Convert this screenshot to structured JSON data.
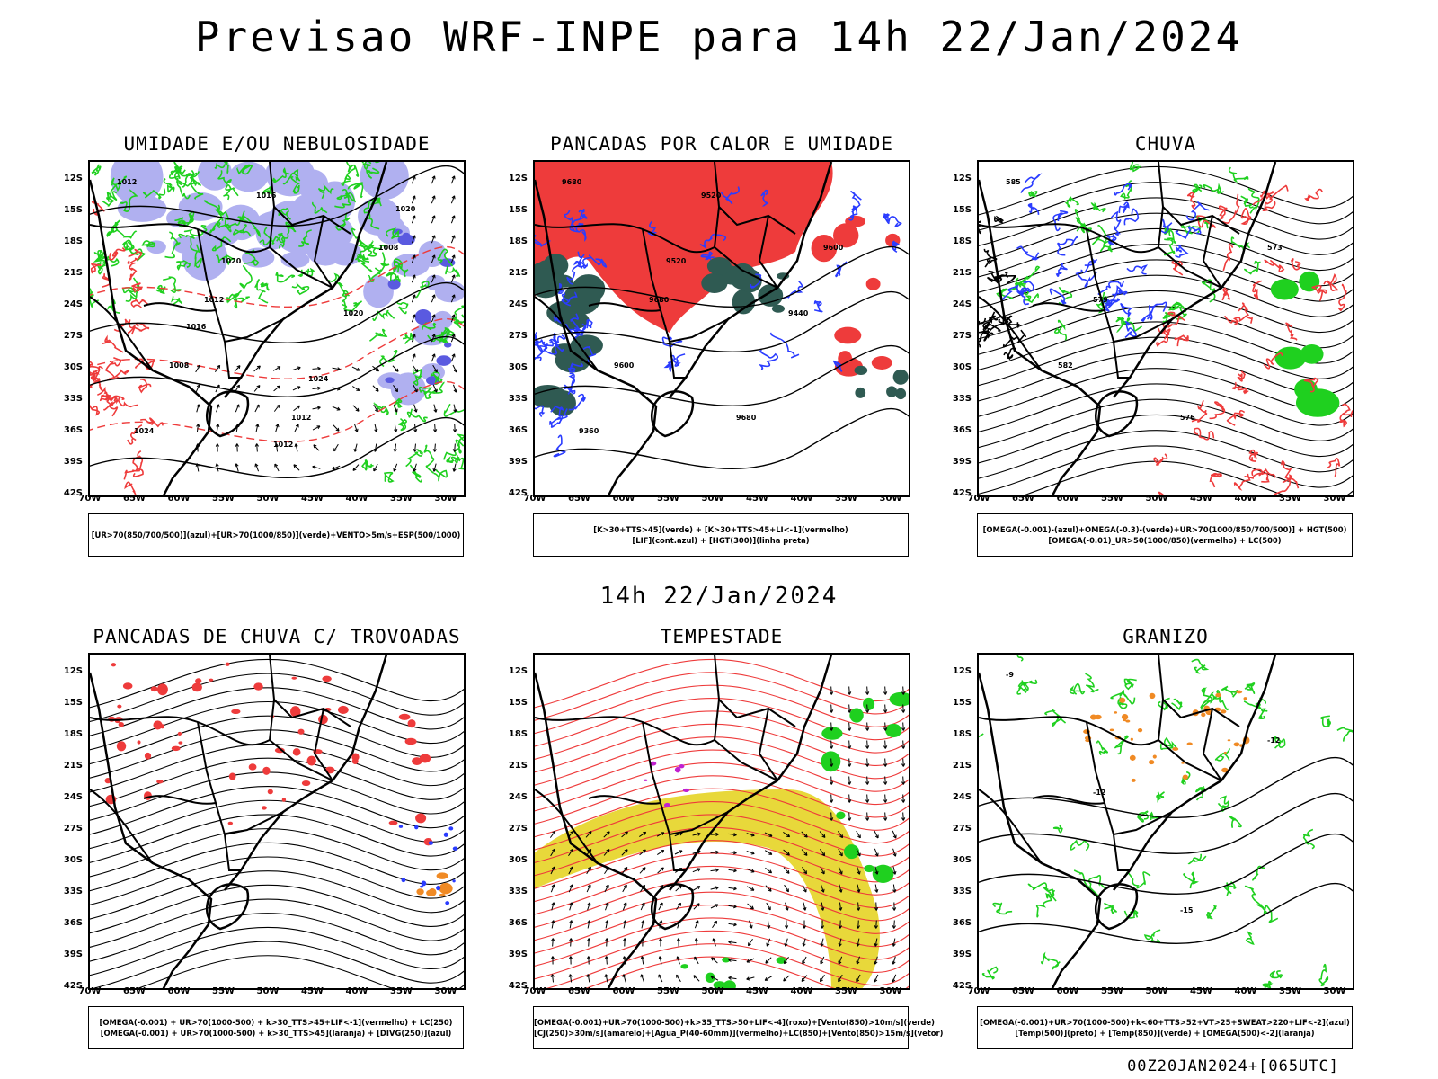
{
  "header": {
    "title": "Previsao WRF-INPE  para 14h 22/Jan/2024",
    "subtitle": "14h 22/Jan/2024",
    "footer": "00Z20JAN2024+[065UTC]"
  },
  "axes": {
    "lat_labels": [
      "12S",
      "15S",
      "18S",
      "21S",
      "24S",
      "27S",
      "30S",
      "33S",
      "36S",
      "39S",
      "42S"
    ],
    "lon_labels": [
      "70W",
      "65W",
      "60W",
      "55W",
      "50W",
      "45W",
      "40W",
      "35W",
      "30W"
    ]
  },
  "panels": [
    {
      "title": "UMIDADE E/OU NEBULOSIDADE",
      "legend": [
        "[UR>70(850/700/500)](azul)+[UR>70(1000/850)](verde)+VENTO>5m/s+ESP(500/1000)"
      ],
      "contour_labels": [
        "1012",
        "1012",
        "1012",
        "1008",
        "1008",
        "1016",
        "1020",
        "1024",
        "1020",
        "1024",
        "1020",
        "1016",
        "1012"
      ]
    },
    {
      "title": "PANCADAS POR CALOR E UMIDADE",
      "legend": [
        "[K>30+TTS>45](verde) + [K>30+TTS>45+LI<-1](vermelho)",
        "[LIF](cont.azul) + [HGT(300)](linha preta)"
      ],
      "contour_labels": [
        "9680",
        "9680",
        "9680",
        "9600",
        "9600",
        "9520",
        "9440",
        "9360",
        "9520"
      ]
    },
    {
      "title": "CHUVA",
      "legend": [
        "[OMEGA(-0.001)-(azul)+OMEGA(-0.3)-(verde)+UR>70(1000/850/700/500)] + HGT(500)",
        "[OMEGA(-0.01)_UR>50(1000/850)(vermelho) + LC(500)"
      ],
      "contour_labels": [
        "585",
        "579",
        "576",
        "573",
        "582"
      ]
    },
    {
      "title": "PANCADAS DE CHUVA C/ TROVOADAS",
      "legend": [
        "[OMEGA(-0.001) + UR>70(1000-500) + k>30_TTS>45+LIF<-1](vermelho) + LC(250)",
        "[OMEGA(-0.001) + UR>70(1000-500) + k>30_TTS>45](laranja) + [DIVG(250)](azul)"
      ]
    },
    {
      "title": "TEMPESTADE",
      "legend": [
        "[OMEGA(-0.001)+UR>70(1000-500)+k>35_TTS>50+LIF<-4](roxo)+[Vento(850)>10m/s](verde)",
        "[CJ(250)>30m/s](amarelo)+[Agua_P(40-60mm)](vermelho)+LC(850)+[Vento(850)>15m/s](vetor)"
      ]
    },
    {
      "title": "GRANIZO",
      "legend": [
        "[OMEGA(-0.001)+UR>70(1000-500)+k<60+TTS>52+VT>25+SWEAT>220+LIF<-2](azul)",
        "[Temp(500)](preto) + [Temp(850)](verde) + [OMEGA(500)<-2](laranja)"
      ],
      "contour_labels": [
        "-9",
        "-12",
        "-15",
        "-12"
      ]
    }
  ],
  "colors": {
    "red": "#ee3b3b",
    "green": "#1fd01f",
    "blue": "#2a3cff",
    "lavender": "#b0b0f0",
    "darkteal": "#2f5a52",
    "yellow": "#e8d83a",
    "orange": "#f08a24",
    "purple": "#c020d0"
  }
}
